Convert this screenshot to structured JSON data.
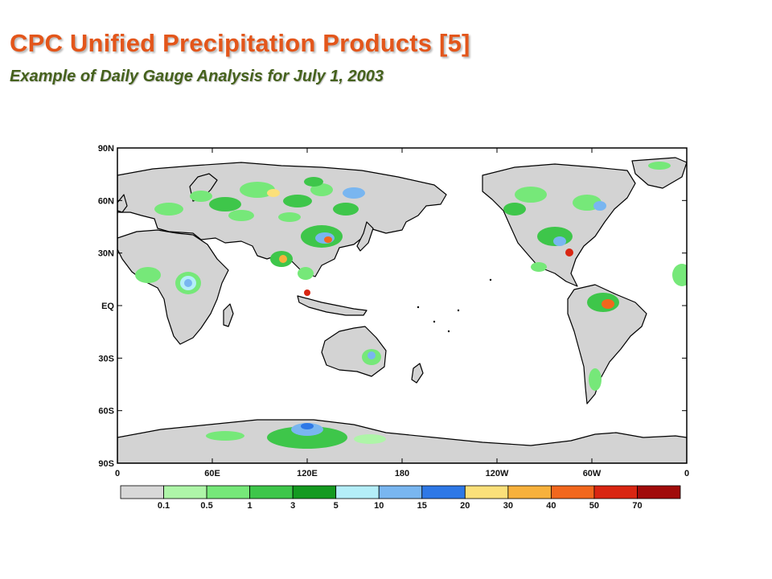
{
  "header": {
    "title": "CPC Unified Precipitation Products [5]",
    "subtitle": "Example of Daily Gauge Analysis for July 1, 2003"
  },
  "map": {
    "y_ticks": [
      "90N",
      "60N",
      "30N",
      "EQ",
      "30S",
      "60S",
      "90S"
    ],
    "x_ticks": [
      "0",
      "60E",
      "120E",
      "180",
      "120W",
      "60W",
      "0"
    ],
    "colors": {
      "land": "#d3d3d3",
      "ocean": "#ffffff",
      "coast": "#000000"
    }
  },
  "legend": {
    "colors": [
      "#d8d8d8",
      "#aef5a8",
      "#76e879",
      "#3ec64a",
      "#149a20",
      "#b4eef8",
      "#79b6f0",
      "#2e78e6",
      "#fbe07a",
      "#f7b13c",
      "#f2671d",
      "#d92612",
      "#a10b0a"
    ],
    "labels": [
      "0.1",
      "0.5",
      "1",
      "3",
      "5",
      "10",
      "15",
      "20",
      "30",
      "40",
      "50",
      "70"
    ]
  }
}
